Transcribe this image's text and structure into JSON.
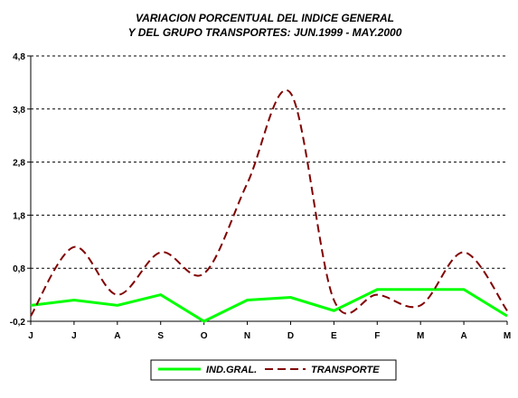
{
  "chart_data": {
    "type": "line",
    "title_lines": [
      "VARIACION PORCENTUAL DEL INDICE GENERAL",
      "Y DEL GRUPO TRANSPORTES: JUN.1999 - MAY.2000"
    ],
    "categories": [
      "J",
      "J",
      "A",
      "S",
      "O",
      "N",
      "D",
      "E",
      "F",
      "M",
      "A",
      "M"
    ],
    "y_ticks": [
      "-0,2",
      "0,8",
      "1,8",
      "2,8",
      "3,8",
      "4,8"
    ],
    "ylim": [
      -0.2,
      4.8
    ],
    "grid": "horizontal dashed",
    "legend_position": "bottom",
    "series": [
      {
        "name": "IND.GRAL.",
        "color": "#00ff00",
        "style": "solid",
        "values": [
          0.1,
          0.2,
          0.1,
          0.3,
          -0.2,
          0.2,
          0.25,
          0.0,
          0.4,
          0.4,
          0.4,
          -0.1
        ]
      },
      {
        "name": "TRANSPORTE",
        "color": "#800000",
        "style": "dashed",
        "values": [
          -0.1,
          1.2,
          0.3,
          1.1,
          0.7,
          2.4,
          4.1,
          0.2,
          0.3,
          0.1,
          1.1,
          0.0
        ]
      }
    ]
  }
}
